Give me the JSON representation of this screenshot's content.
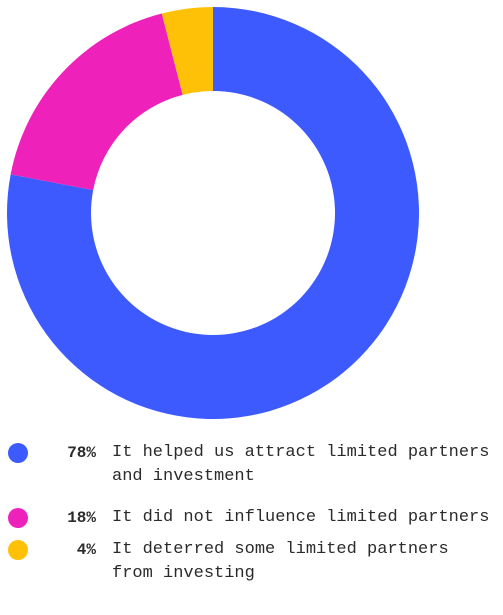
{
  "chart_data": {
    "type": "pie",
    "categories": [
      "It helped us attract limited partners and investment",
      "It did not influence limited partners",
      "It deterred some limited partners from investing"
    ],
    "values": [
      78,
      18,
      4
    ],
    "value_labels": [
      "78%",
      "18%",
      "4%"
    ],
    "colors": [
      "#3d5afe",
      "#ee22bb",
      "#ffc107"
    ]
  }
}
